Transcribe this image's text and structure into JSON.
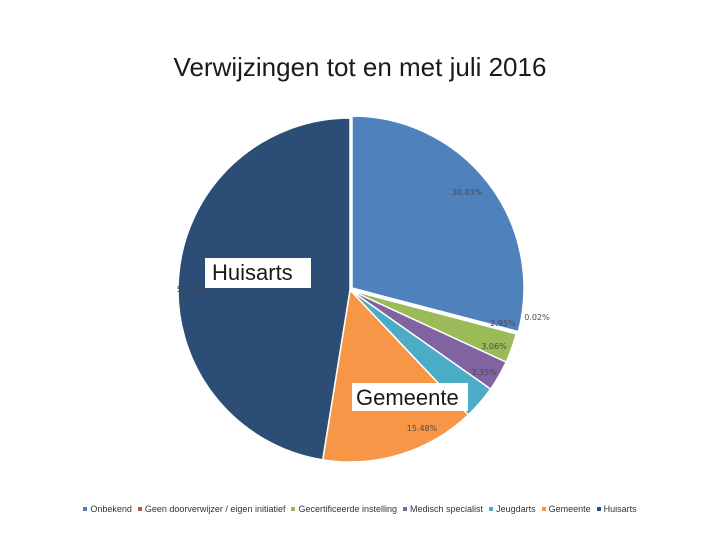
{
  "chart_data": {
    "type": "pie",
    "title": "Verwijzingen tot en met juli 2016",
    "slices": [
      {
        "name": "Onbekend",
        "value": 30.83,
        "label": "30.83%",
        "color": "#4f81bd"
      },
      {
        "name": "Geen doorverwijzer / eigen initiatief",
        "value": 0.02,
        "label": "0.02%",
        "color": "#c0504d"
      },
      {
        "name": "Gecertificeerde instelling",
        "value": 2.95,
        "label": "2.95%",
        "color": "#9bbb59"
      },
      {
        "name": "Medisch specialist",
        "value": 3.06,
        "label": "3.06%",
        "color": "#8064a2"
      },
      {
        "name": "Jeugdarts",
        "value": 3.35,
        "label": "3.35%",
        "color": "#4bacc6"
      },
      {
        "name": "Gemeente",
        "value": 15.48,
        "label": "15.48%",
        "color": "#f79646"
      },
      {
        "name": "Huisarts",
        "value": 50.31,
        "label": "50.31%",
        "color": "#2c4d75"
      }
    ],
    "legend_position": "bottom",
    "callouts": [
      "Huisarts",
      "Gemeente"
    ]
  }
}
